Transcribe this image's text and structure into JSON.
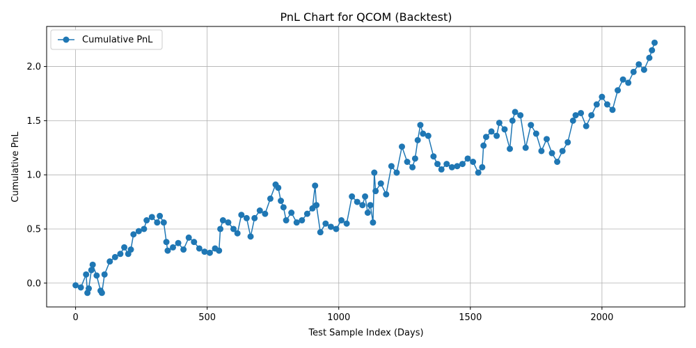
{
  "chart_data": {
    "type": "line",
    "title": "PnL Chart for QCOM (Backtest)",
    "xlabel": "Test Sample Index (Days)",
    "ylabel": "Cumulative PnL",
    "xlim": [
      -110,
      2315
    ],
    "ylim": [
      -0.22,
      2.37
    ],
    "xticks": [
      0,
      500,
      1000,
      1500,
      2000
    ],
    "xtick_labels": [
      "0",
      "500",
      "1000",
      "1500",
      "2000"
    ],
    "yticks": [
      0.0,
      0.5,
      1.0,
      1.5,
      2.0
    ],
    "ytick_labels": [
      "0.0",
      "0.5",
      "1.0",
      "1.5",
      "2.0"
    ],
    "grid": true,
    "legend_position": "upper-left",
    "series": [
      {
        "name": "Cumulative PnL",
        "color": "#1f77b4",
        "marker": "circle",
        "x": [
          0,
          20,
          40,
          45,
          50,
          60,
          65,
          80,
          95,
          100,
          110,
          130,
          150,
          170,
          185,
          200,
          210,
          220,
          240,
          260,
          270,
          290,
          310,
          320,
          335,
          345,
          350,
          370,
          390,
          410,
          430,
          450,
          470,
          490,
          510,
          530,
          545,
          550,
          560,
          580,
          600,
          615,
          630,
          650,
          665,
          680,
          700,
          720,
          740,
          760,
          770,
          780,
          790,
          800,
          820,
          840,
          860,
          880,
          900,
          910,
          915,
          930,
          950,
          970,
          990,
          1010,
          1030,
          1050,
          1070,
          1090,
          1100,
          1110,
          1120,
          1130,
          1135,
          1140,
          1160,
          1180,
          1200,
          1220,
          1240,
          1260,
          1280,
          1290,
          1300,
          1310,
          1320,
          1340,
          1360,
          1375,
          1390,
          1410,
          1430,
          1450,
          1470,
          1490,
          1510,
          1530,
          1545,
          1550,
          1560,
          1580,
          1600,
          1610,
          1630,
          1650,
          1660,
          1670,
          1690,
          1710,
          1730,
          1750,
          1770,
          1790,
          1810,
          1830,
          1850,
          1870,
          1890,
          1900,
          1920,
          1940,
          1960,
          1980,
          2000,
          2020,
          2040,
          2060,
          2080,
          2100,
          2120,
          2140,
          2160,
          2180,
          2190,
          2200
        ],
        "y": [
          -0.02,
          -0.04,
          0.08,
          -0.09,
          -0.05,
          0.12,
          0.17,
          0.07,
          -0.07,
          -0.09,
          0.08,
          0.2,
          0.24,
          0.27,
          0.33,
          0.27,
          0.31,
          0.45,
          0.48,
          0.5,
          0.58,
          0.61,
          0.56,
          0.62,
          0.56,
          0.38,
          0.3,
          0.33,
          0.37,
          0.31,
          0.42,
          0.38,
          0.32,
          0.29,
          0.28,
          0.32,
          0.3,
          0.5,
          0.58,
          0.56,
          0.5,
          0.46,
          0.63,
          0.6,
          0.43,
          0.6,
          0.67,
          0.64,
          0.78,
          0.91,
          0.88,
          0.76,
          0.7,
          0.58,
          0.65,
          0.56,
          0.58,
          0.64,
          0.69,
          0.9,
          0.72,
          0.47,
          0.55,
          0.52,
          0.5,
          0.58,
          0.55,
          0.8,
          0.75,
          0.72,
          0.8,
          0.65,
          0.72,
          0.56,
          1.02,
          0.85,
          0.92,
          0.82,
          1.08,
          1.02,
          1.26,
          1.12,
          1.07,
          1.15,
          1.32,
          1.46,
          1.38,
          1.36,
          1.17,
          1.1,
          1.05,
          1.1,
          1.07,
          1.08,
          1.1,
          1.15,
          1.12,
          1.02,
          1.07,
          1.27,
          1.35,
          1.4,
          1.36,
          1.48,
          1.42,
          1.24,
          1.5,
          1.58,
          1.55,
          1.25,
          1.46,
          1.38,
          1.22,
          1.33,
          1.2,
          1.12,
          1.22,
          1.3,
          1.5,
          1.55,
          1.57,
          1.45,
          1.55,
          1.65,
          1.72,
          1.65,
          1.6,
          1.78,
          1.88,
          1.85,
          1.95,
          2.02,
          1.97,
          2.08,
          2.15,
          2.22
        ]
      }
    ]
  }
}
